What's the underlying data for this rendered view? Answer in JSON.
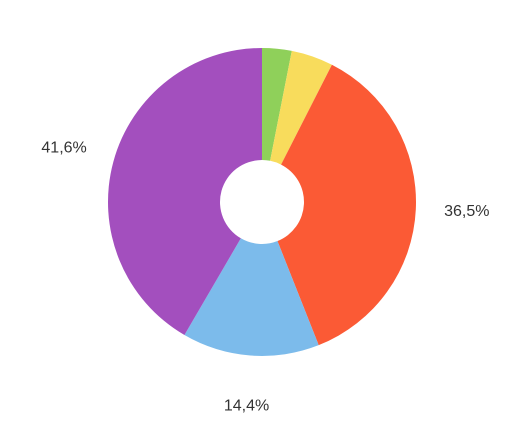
{
  "chart_data": {
    "type": "donut",
    "values": [
      3.1,
      4.4,
      36.5,
      14.4,
      41.6
    ],
    "value_labels": [
      null,
      null,
      "36,5%",
      "14,4%",
      "41,6%"
    ],
    "colors": [
      "#8fd05a",
      "#f8dc5c",
      "#fb5a35",
      "#7cbbeb",
      "#a34fbe"
    ]
  }
}
